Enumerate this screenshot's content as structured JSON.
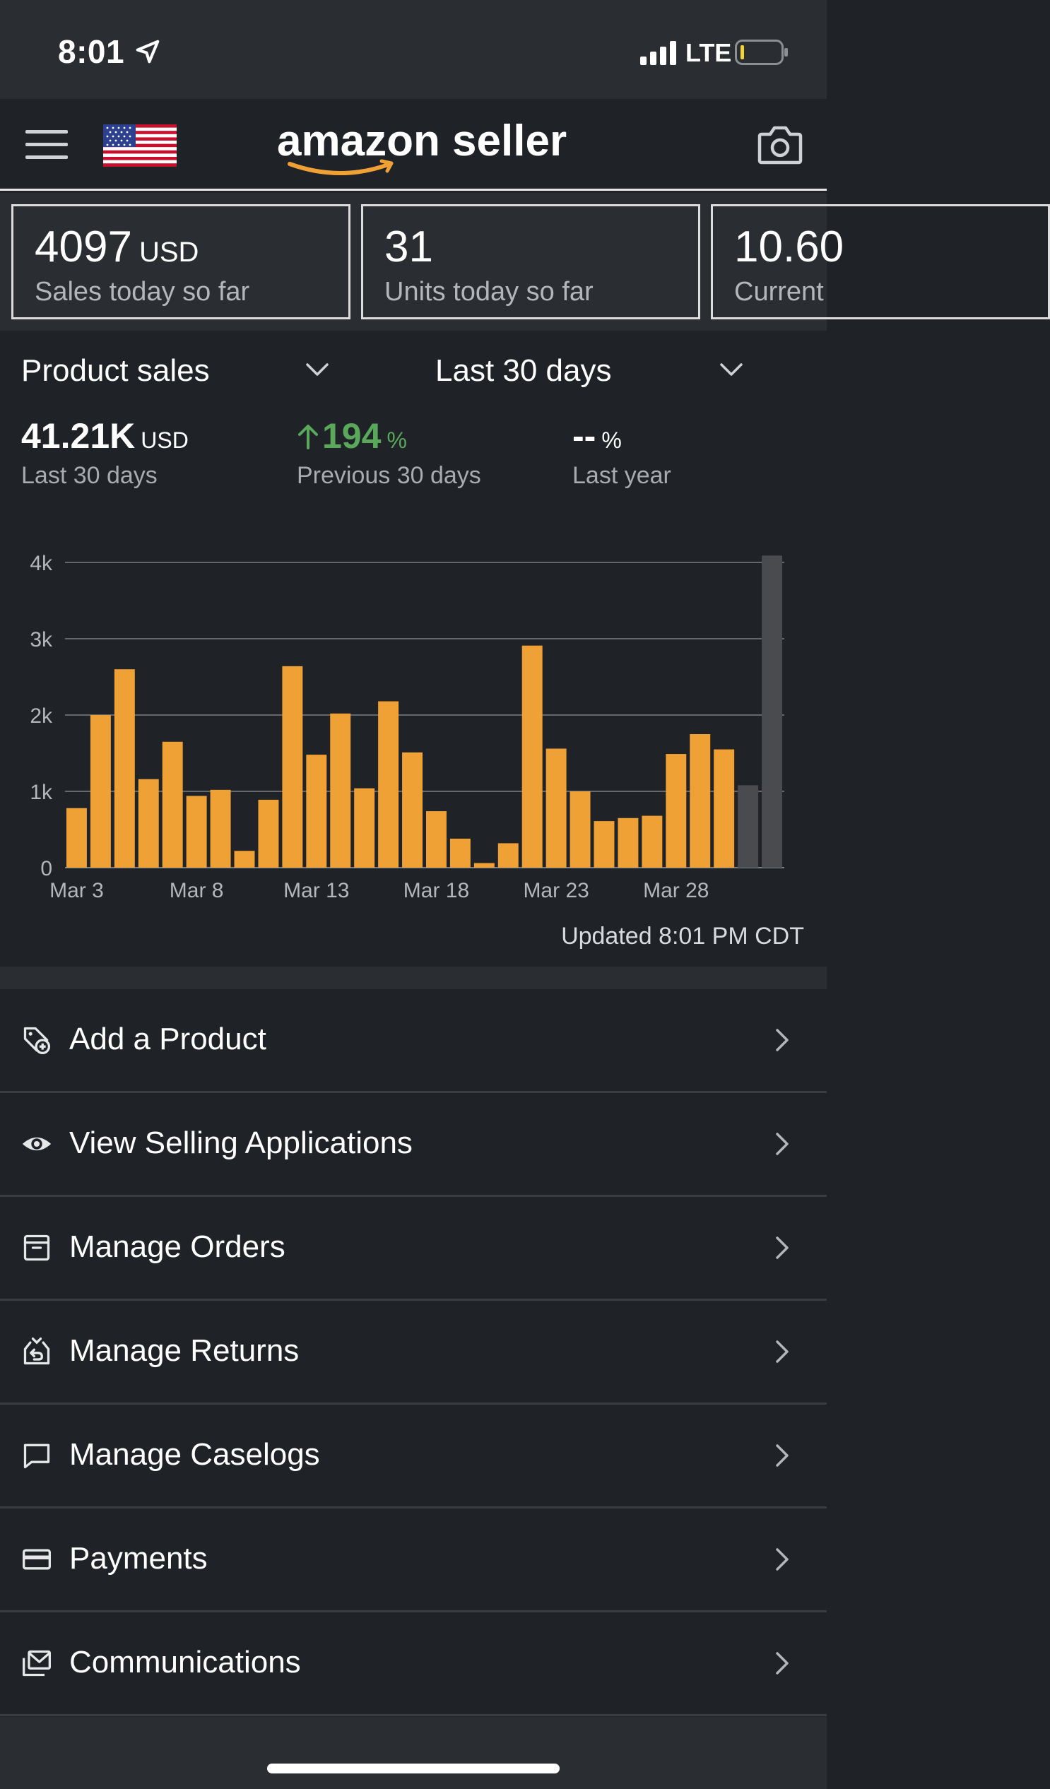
{
  "status_bar": {
    "time": "8:01",
    "network": "LTE"
  },
  "header": {
    "logo_text": "amazon seller",
    "flag": "us-flag-icon"
  },
  "kpis": [
    {
      "value": "4097",
      "unit": "USD",
      "label": "Sales today so far"
    },
    {
      "value": "31",
      "unit": "",
      "label": "Units today so far"
    },
    {
      "value": "10.60",
      "unit": "",
      "label": "Current"
    }
  ],
  "sales": {
    "metric_select": "Product sales",
    "period_select": "Last 30 days",
    "stats": [
      {
        "value": "41.21K",
        "unit": "USD",
        "label": "Last 30 days"
      },
      {
        "value": "194",
        "unit": "%",
        "label": "Previous 30 days",
        "trend": "up"
      },
      {
        "value": "--",
        "unit": "%",
        "label": "Last year"
      }
    ],
    "updated": "Updated 8:01 PM CDT"
  },
  "chart_data": {
    "type": "bar",
    "x_tick_labels": [
      "Mar 3",
      "Mar 8",
      "Mar 13",
      "Mar 18",
      "Mar 23",
      "Mar 28"
    ],
    "y_tick_labels": [
      "0",
      "1k",
      "2k",
      "3k",
      "4k"
    ],
    "ylim": [
      0,
      4000
    ],
    "grid": true,
    "values": [
      780,
      2000,
      2600,
      1160,
      1650,
      940,
      1020,
      220,
      890,
      2640,
      1480,
      2020,
      1040,
      2180,
      1510,
      740,
      380,
      60,
      320,
      2910,
      1560,
      1000,
      610,
      650,
      680,
      1490,
      1750,
      1550,
      1080,
      4090
    ],
    "colors": {
      "bar": "#f0a135",
      "highlight": "#4a4b4f",
      "grid": "#7b7e82"
    },
    "highlight_last": 2
  },
  "menu": [
    {
      "label": "Add a Product",
      "icon": "tag-add-icon"
    },
    {
      "label": "View Selling Applications",
      "icon": "eye-icon"
    },
    {
      "label": "Manage Orders",
      "icon": "box-icon"
    },
    {
      "label": "Manage Returns",
      "icon": "return-box-icon"
    },
    {
      "label": "Manage Caselogs",
      "icon": "chat-icon"
    },
    {
      "label": "Payments",
      "icon": "credit-card-icon"
    },
    {
      "label": "Communications",
      "icon": "mail-stack-icon"
    }
  ]
}
